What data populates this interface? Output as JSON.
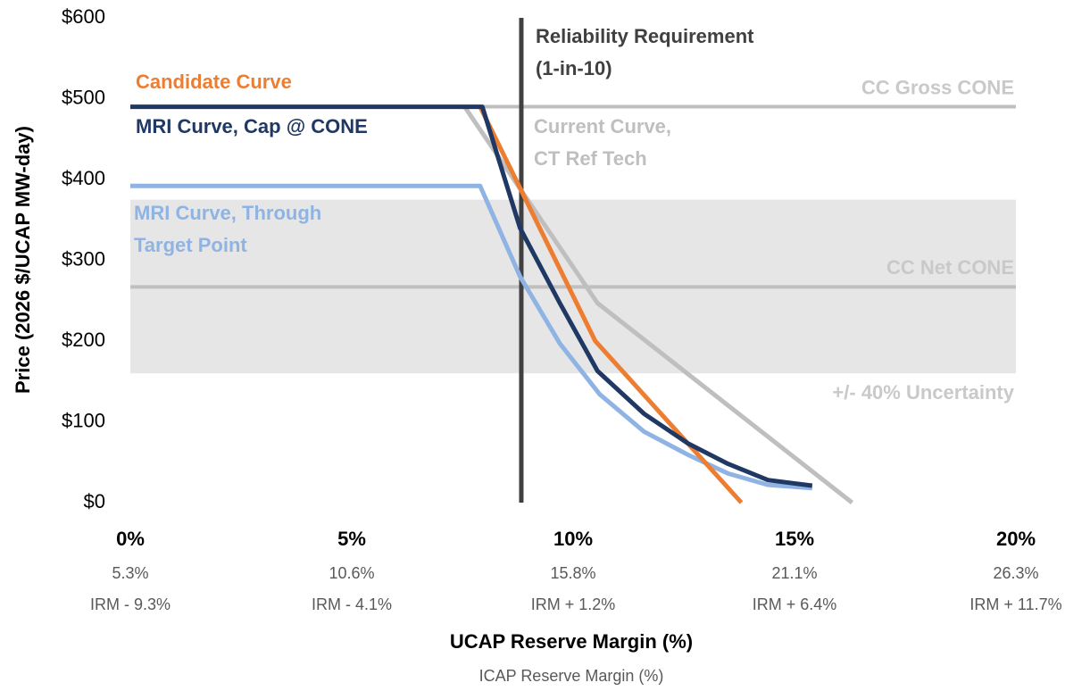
{
  "chart_data": {
    "type": "line",
    "x_label": "UCAP Reserve Margin (%)",
    "x_label_secondary": "ICAP Reserve Margin (%)",
    "y_label": "Price (2026 $/UCAP MW-day)",
    "xlim": [
      0,
      20
    ],
    "ylim": [
      0,
      600
    ],
    "xticks": [
      {
        "value": 0,
        "label": "0%"
      },
      {
        "value": 5,
        "label": "5%"
      },
      {
        "value": 10,
        "label": "10%"
      },
      {
        "value": 15,
        "label": "15%"
      },
      {
        "value": 20,
        "label": "20%"
      }
    ],
    "xticks_secondary": [
      [
        "5.3%",
        "IRM - 9.3%"
      ],
      [
        "10.6%",
        "IRM - 4.1%"
      ],
      [
        "15.8%",
        "IRM + 1.2%"
      ],
      [
        "21.1%",
        "IRM + 6.4%"
      ],
      [
        "26.3%",
        "IRM + 11.7%"
      ]
    ],
    "yticks": [
      {
        "value": 0,
        "label": "$0"
      },
      {
        "value": 100,
        "label": "$100"
      },
      {
        "value": 200,
        "label": "$200"
      },
      {
        "value": 300,
        "label": "$300"
      },
      {
        "value": 400,
        "label": "$400"
      },
      {
        "value": 500,
        "label": "$500"
      },
      {
        "value": 600,
        "label": "$600"
      }
    ],
    "grid": false,
    "band": {
      "name": "+/- 40% Uncertainty",
      "range": [
        160,
        375
      ],
      "color": "#e6e6e6"
    },
    "hlines": [
      {
        "name": "CC Gross CONE",
        "value": 490,
        "color": "#bfbfbf"
      },
      {
        "name": "CC Net CONE",
        "value": 267,
        "color": "#bfbfbf"
      }
    ],
    "vline": {
      "name": "Reliability Requirement (1-in-10)",
      "lines": [
        "Reliability Requirement",
        "(1-in-10)"
      ],
      "value": 8.83,
      "color": "#404040"
    },
    "series": [
      {
        "name": "Current Curve, CT Ref Tech",
        "lines": [
          "Current Curve,",
          "CT Ref Tech"
        ],
        "color": "#bfbfbf",
        "x": [
          7.55,
          10.55,
          16.3
        ],
        "values": [
          490,
          247,
          0
        ]
      },
      {
        "name": "MRI Curve, Through Target Point",
        "lines": [
          "MRI Curve, Through",
          "Target Point"
        ],
        "color": "#8fb4e3",
        "x": [
          0,
          7.9,
          8.8,
          9.7,
          10.6,
          11.6,
          12.6,
          13.5,
          14.4,
          15.4
        ],
        "values": [
          392,
          392,
          280,
          197,
          134,
          88,
          59,
          36,
          22,
          18
        ]
      },
      {
        "name": "Candidate Curve",
        "lines": [
          "Candidate Curve"
        ],
        "color": "#ed7d31",
        "x": [
          7.9,
          10.5,
          13.8
        ],
        "values": [
          490,
          200,
          0
        ]
      },
      {
        "name": "MRI Curve, Cap @ CONE",
        "lines": [
          "MRI Curve, Cap @ CONE"
        ],
        "color": "#1f3864",
        "x": [
          0,
          7.95,
          8.8,
          9.7,
          10.55,
          11.6,
          12.6,
          13.5,
          14.4,
          15.4
        ],
        "values": [
          490,
          490,
          340,
          247,
          163,
          110,
          73,
          48,
          28,
          21
        ]
      }
    ]
  }
}
